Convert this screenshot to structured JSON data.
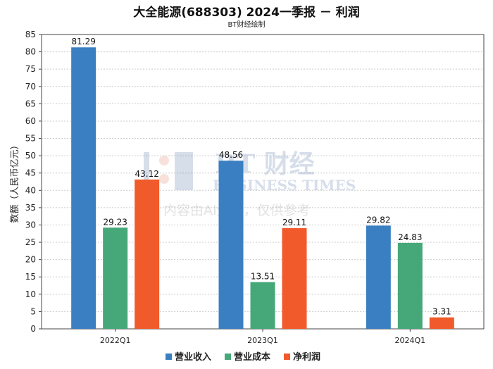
{
  "chart_data": {
    "type": "bar",
    "title": "大全能源(688303) 2024一季报 － 利润",
    "subtitle": "BT财经绘制",
    "ylabel": "数额（人民币亿元）",
    "xlabel": "",
    "categories": [
      "2022Q1",
      "2023Q1",
      "2024Q1"
    ],
    "ylim": [
      0,
      85
    ],
    "yticks": [
      0,
      5,
      10,
      15,
      20,
      25,
      30,
      35,
      40,
      45,
      50,
      55,
      60,
      65,
      70,
      75,
      80,
      85
    ],
    "grid": true,
    "legend_position": "bottom",
    "series": [
      {
        "name": "营业收入",
        "color": "#3a7fc1",
        "values": [
          81.29,
          48.56,
          29.82
        ]
      },
      {
        "name": "营业成本",
        "color": "#46a878",
        "values": [
          29.23,
          13.51,
          24.83
        ]
      },
      {
        "name": "净利润",
        "color": "#f15a2b",
        "values": [
          43.12,
          29.11,
          3.31
        ]
      }
    ]
  },
  "watermark": {
    "brand": "BT 财经",
    "brand_en": "BUSINESS TIMES",
    "notice": "内容由AI生成，仅供参考"
  }
}
